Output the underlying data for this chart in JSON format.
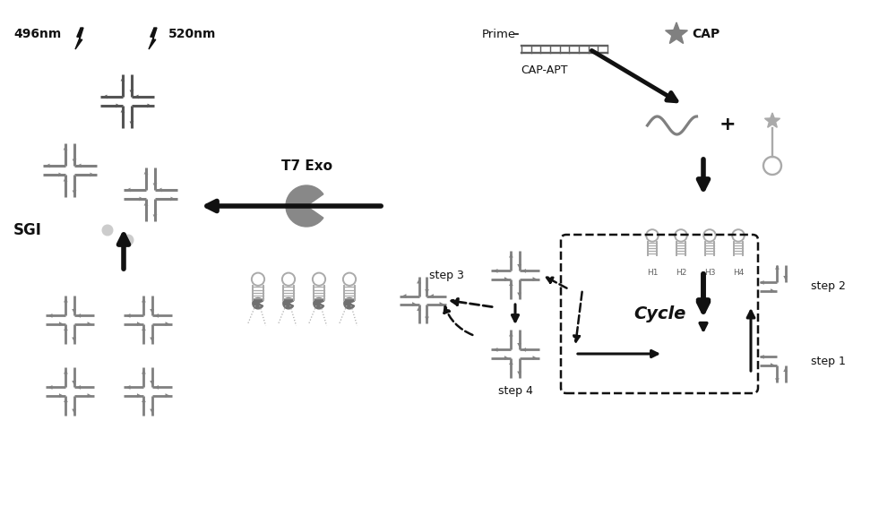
{
  "bg_color": "#ffffff",
  "dark_color": "#111111",
  "gray_color": "#808080",
  "light_gray": "#aaaaaa",
  "mid_gray": "#606060",
  "labels": {
    "nm496": "496nm",
    "nm520": "520nm",
    "sgi": "SGI",
    "t7exo": "T7 Exo",
    "prime": "Prime",
    "cap_apt": "CAP-APT",
    "cap": "CAP",
    "step1": "step 1",
    "step2": "step 2",
    "step3": "step 3",
    "step4": "step 4",
    "cycle": "Cycle",
    "h_labels": [
      "H1",
      "H2",
      "H3",
      "H4"
    ]
  }
}
